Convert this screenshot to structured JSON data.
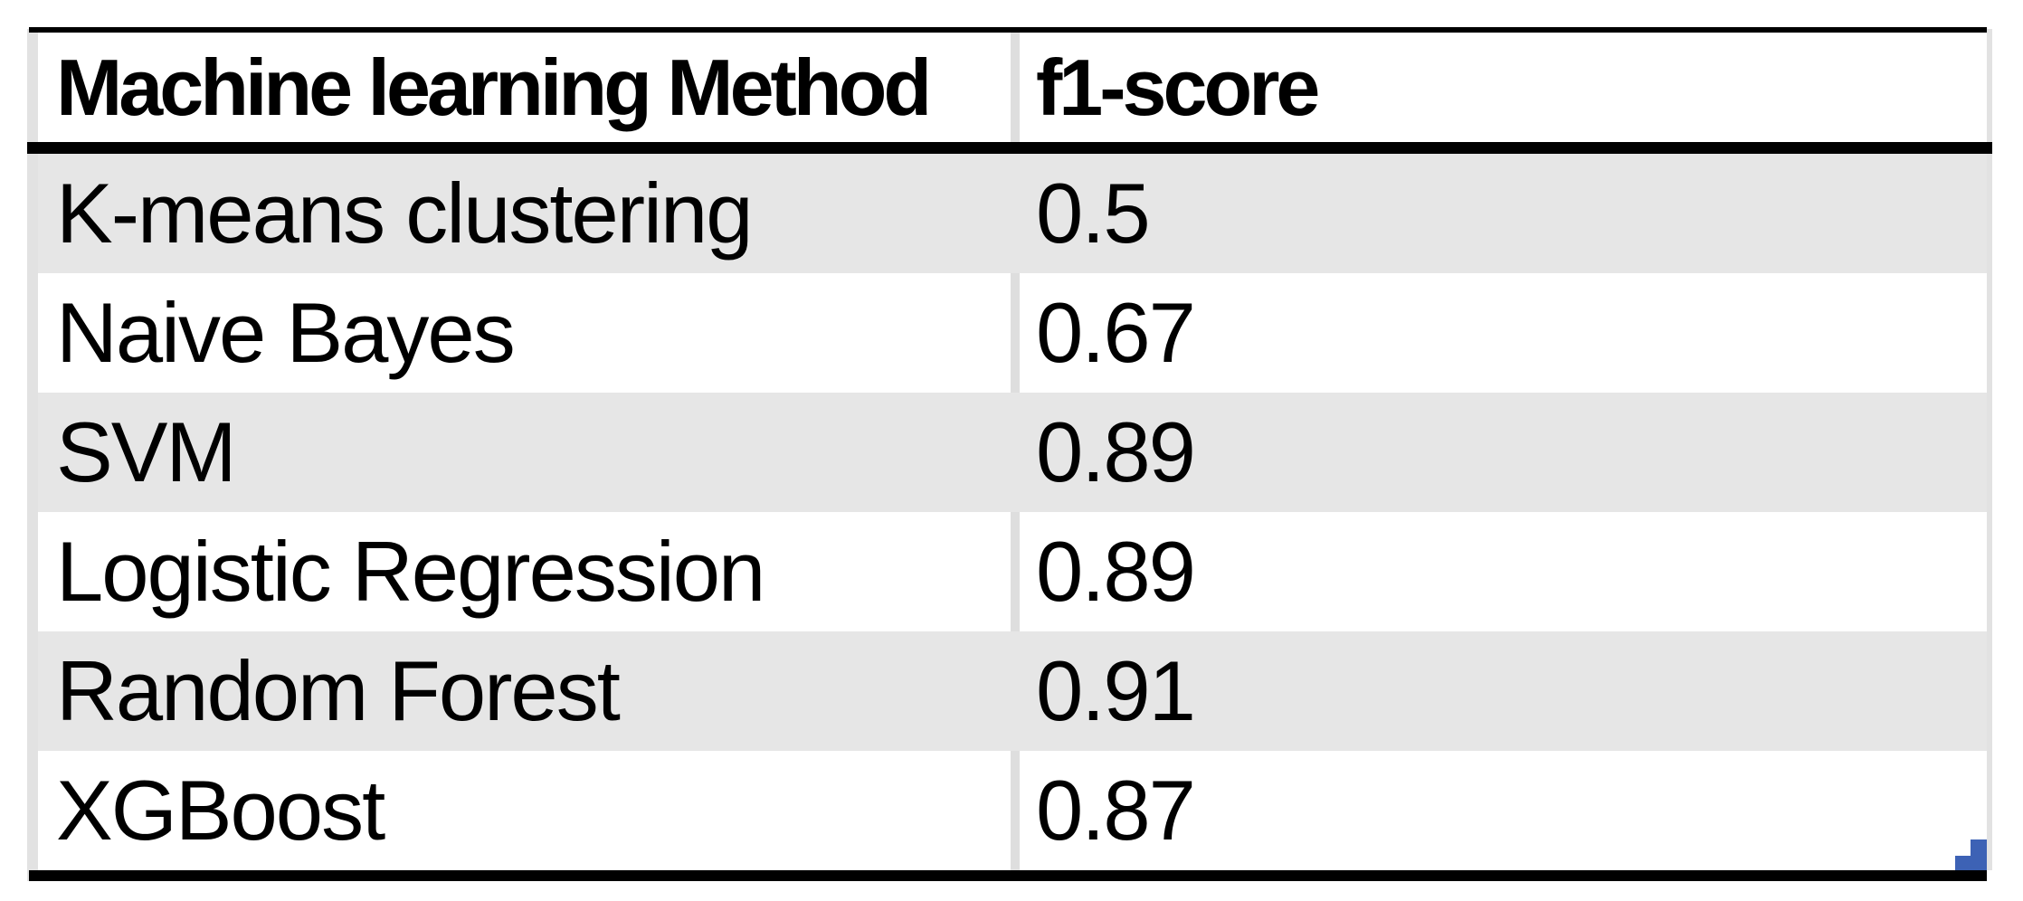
{
  "table": {
    "columns": {
      "method": "Machine learning Method",
      "f1": "f1-score"
    },
    "rows": [
      {
        "method": "K-means clustering",
        "f1": "0.5"
      },
      {
        "method": "Naive Bayes",
        "f1": "0.67"
      },
      {
        "method": "SVM",
        "f1": "0.89"
      },
      {
        "method": "Logistic Regression",
        "f1": "0.89"
      },
      {
        "method": "Random Forest",
        "f1": "0.91"
      },
      {
        "method": "XGBoost",
        "f1": "0.87"
      }
    ]
  },
  "chart_data": {
    "type": "table",
    "columns": [
      "Machine learning Method",
      "f1-score"
    ],
    "rows": [
      [
        "K-means clustering",
        0.5
      ],
      [
        "Naive Bayes",
        0.67
      ],
      [
        "SVM",
        0.89
      ],
      [
        "Logistic Regression",
        0.89
      ],
      [
        "Random Forest",
        0.91
      ],
      [
        "XGBoost",
        0.87
      ]
    ],
    "title": "",
    "layout_hints": {
      "alternating_row_shading": true,
      "thick_rules": [
        "top",
        "below-header",
        "bottom"
      ]
    }
  },
  "colors": {
    "row_shade": "#e6e6e6",
    "light_border": "#dedede",
    "rule_black": "#000000",
    "corner_accent_blue": "#3d62b5"
  }
}
